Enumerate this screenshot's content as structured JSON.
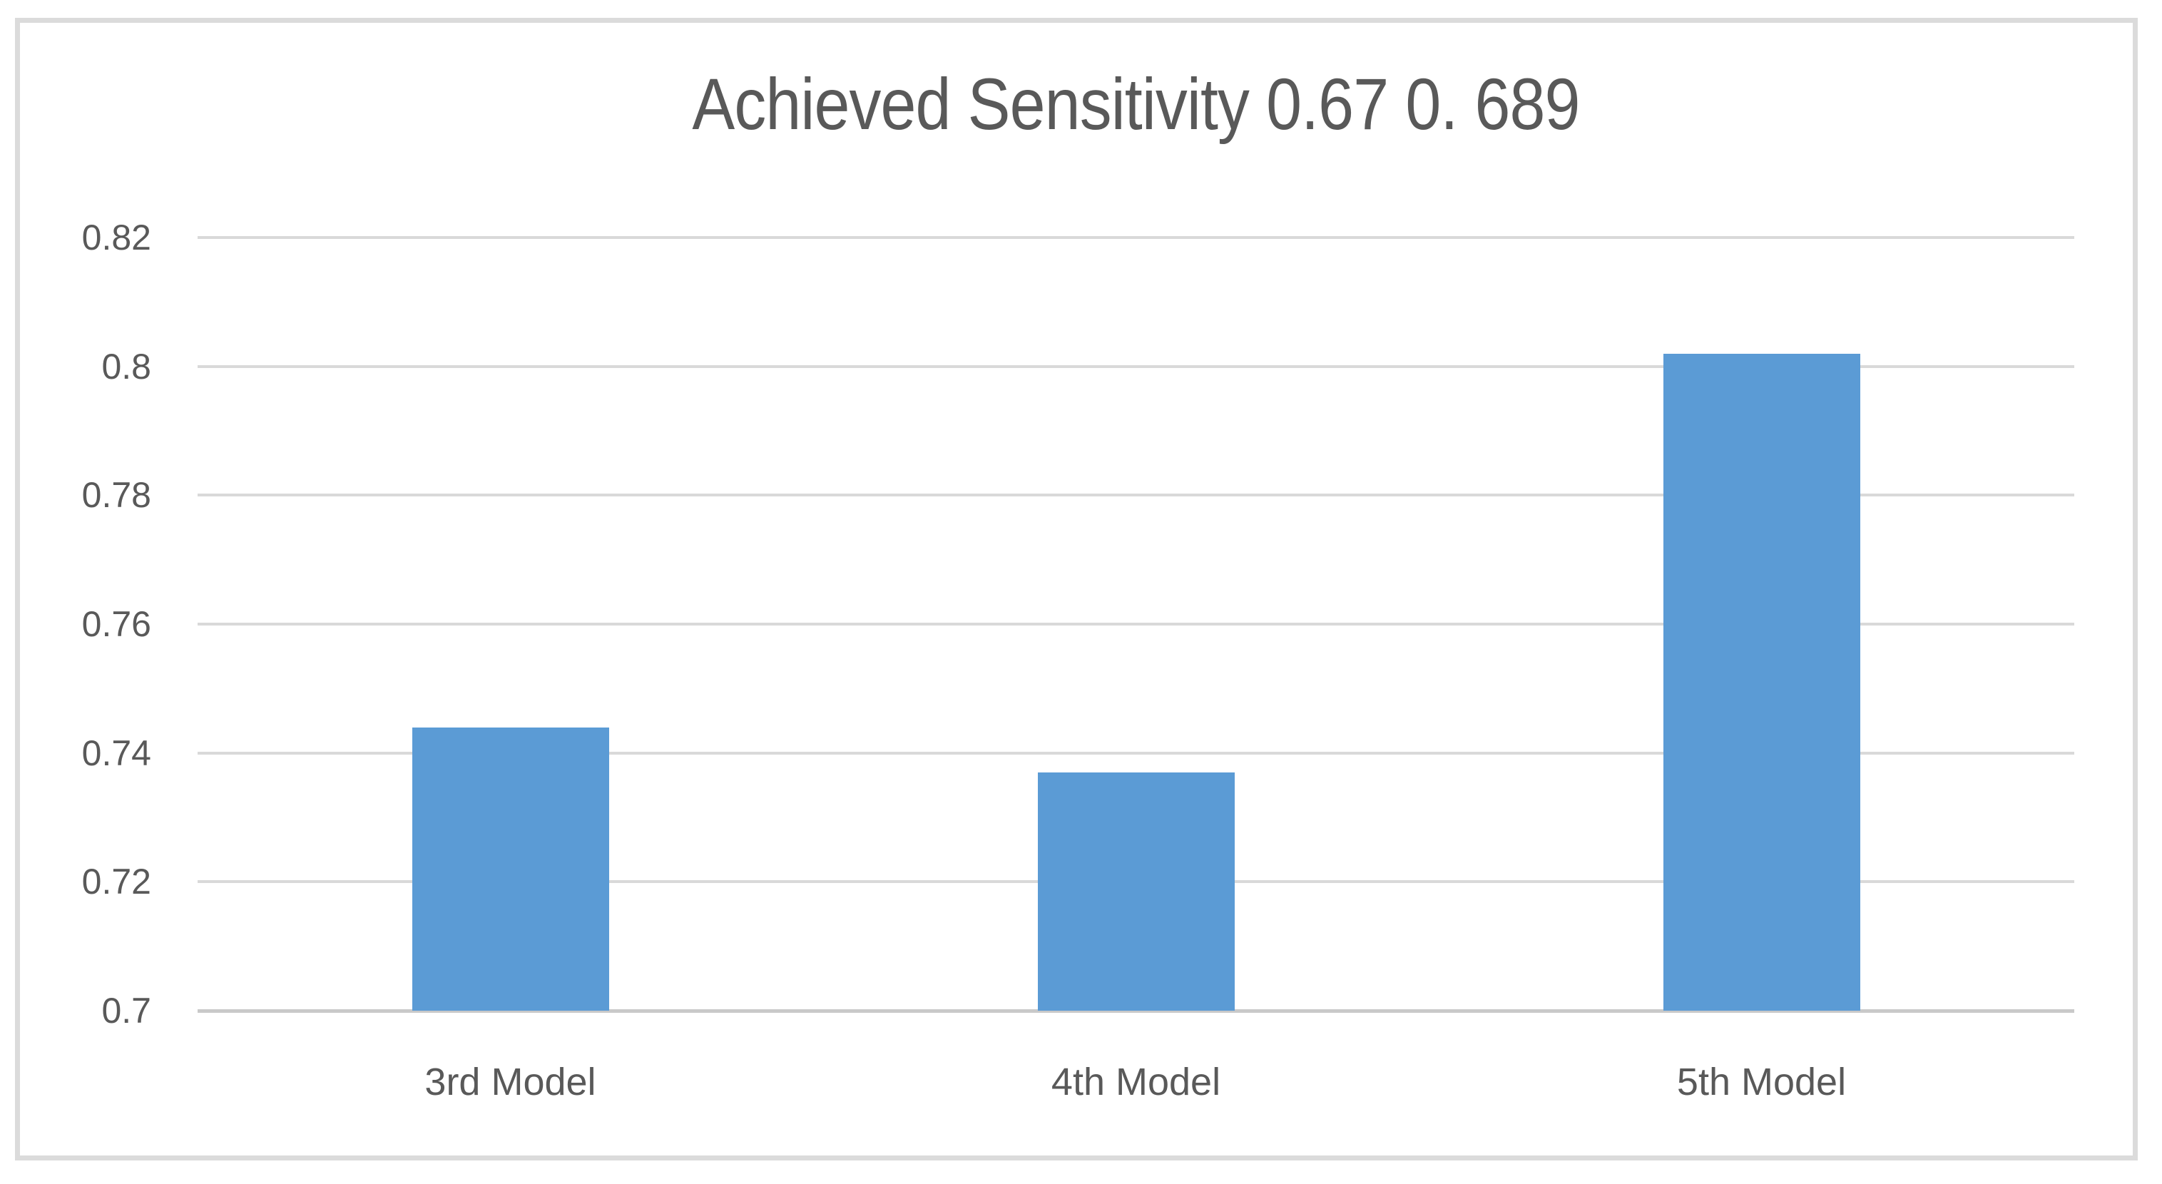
{
  "chart_data": {
    "type": "bar",
    "title": "Achieved Sensitivity 0.67 0. 689",
    "categories": [
      "3rd Model",
      "4th Model",
      "5th Model"
    ],
    "values": [
      0.744,
      0.737,
      0.802
    ],
    "xlabel": "",
    "ylabel": "",
    "ylim": [
      0.7,
      0.82
    ],
    "yticks": [
      {
        "value": 0.82,
        "label": "0.82"
      },
      {
        "value": 0.8,
        "label": "0.8"
      },
      {
        "value": 0.78,
        "label": "0.78"
      },
      {
        "value": 0.76,
        "label": "0.76"
      },
      {
        "value": 0.74,
        "label": "0.74"
      },
      {
        "value": 0.72,
        "label": "0.72"
      },
      {
        "value": 0.7,
        "label": "0.7"
      }
    ],
    "grid": true,
    "legend": false,
    "colors": {
      "bar": "#5B9BD5",
      "title_text": "#595959",
      "axis_text": "#595959",
      "gridline": "#D9D9D9",
      "frame_border": "#DBDBDB",
      "background": "#FFFFFF"
    }
  }
}
